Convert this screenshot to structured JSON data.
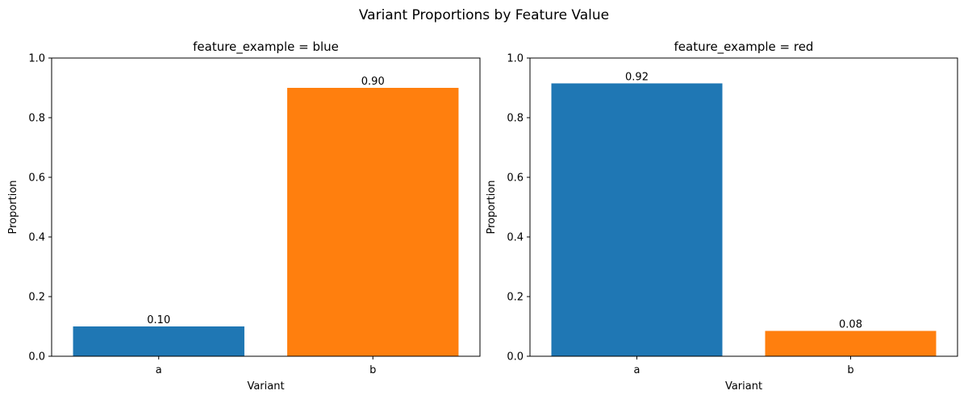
{
  "figure": {
    "title": "Variant Proportions by Feature Value"
  },
  "chart_data": [
    {
      "type": "bar",
      "title": "feature_example = blue",
      "xlabel": "Variant",
      "ylabel": "Proportion",
      "categories": [
        "a",
        "b"
      ],
      "values": [
        0.1,
        0.9
      ],
      "value_labels": [
        "0.10",
        "0.90"
      ],
      "colors": [
        "#1f77b4",
        "#ff7f0e"
      ],
      "ylim": [
        0,
        1
      ],
      "yticks": [
        0.0,
        0.2,
        0.4,
        0.6,
        0.8,
        1.0
      ],
      "ytick_labels": [
        "0.0",
        "0.2",
        "0.4",
        "0.6",
        "0.8",
        "1.0"
      ],
      "grid": false
    },
    {
      "type": "bar",
      "title": "feature_example = red",
      "xlabel": "Variant",
      "ylabel": "Proportion",
      "categories": [
        "a",
        "b"
      ],
      "values": [
        0.915,
        0.085
      ],
      "value_labels": [
        "0.92",
        "0.08"
      ],
      "colors": [
        "#1f77b4",
        "#ff7f0e"
      ],
      "ylim": [
        0,
        1
      ],
      "yticks": [
        0.0,
        0.2,
        0.4,
        0.6,
        0.8,
        1.0
      ],
      "ytick_labels": [
        "0.0",
        "0.2",
        "0.4",
        "0.6",
        "0.8",
        "1.0"
      ],
      "grid": false
    }
  ]
}
